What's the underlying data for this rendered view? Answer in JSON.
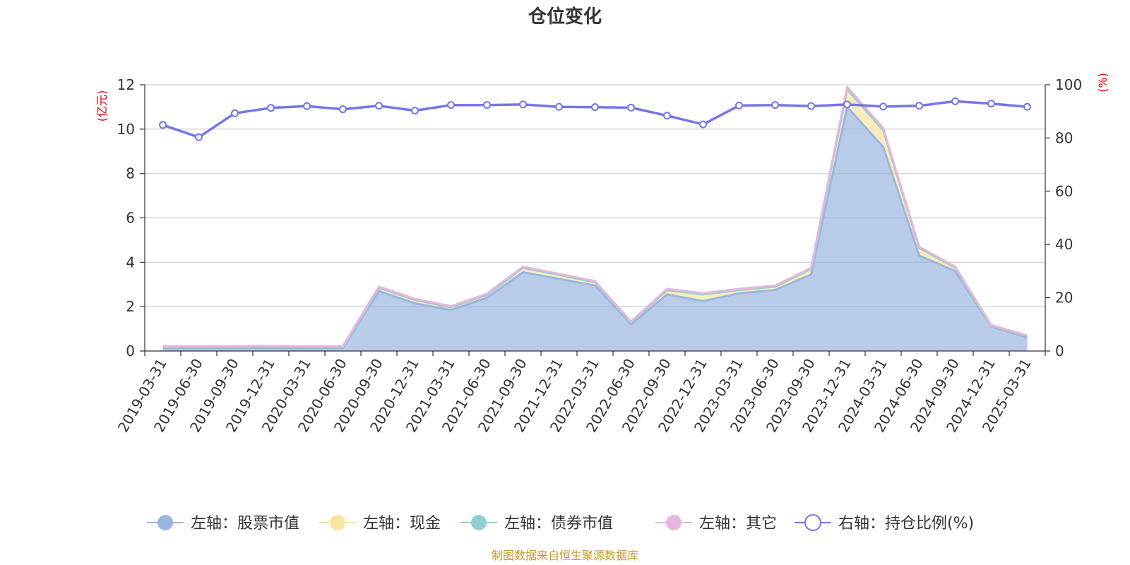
{
  "chart_data": {
    "type": "area",
    "title": "仓位变化",
    "x": [
      "2019-03-31",
      "2019-06-30",
      "2019-09-30",
      "2019-12-31",
      "2020-03-31",
      "2020-06-30",
      "2020-09-30",
      "2020-12-31",
      "2021-03-31",
      "2021-06-30",
      "2021-09-30",
      "2021-12-31",
      "2022-03-31",
      "2022-06-30",
      "2022-09-30",
      "2022-12-31",
      "2023-03-31",
      "2023-06-30",
      "2023-09-30",
      "2023-12-31",
      "2024-03-31",
      "2024-06-30",
      "2024-09-30",
      "2024-12-31",
      "2025-03-31"
    ],
    "y_left": {
      "unit_label": "(亿元)",
      "ylim": [
        0,
        12
      ],
      "ticks": [
        "0",
        "2",
        "4",
        "6",
        "8",
        "10",
        "12"
      ]
    },
    "y_right": {
      "unit_label": "(%)",
      "ylim": [
        0,
        100
      ],
      "ticks": [
        "0",
        "20",
        "40",
        "60",
        "80",
        "100"
      ]
    },
    "grid": true,
    "legend_position": "bottom",
    "series": [
      {
        "name": "左轴：股票市值",
        "axis": "left",
        "stacked": true,
        "color": "#9ab6e0",
        "values": [
          0.13,
          0.13,
          0.13,
          0.13,
          0.12,
          0.13,
          2.7,
          2.15,
          1.85,
          2.4,
          3.55,
          3.25,
          2.95,
          1.2,
          2.55,
          2.25,
          2.6,
          2.75,
          3.45,
          11.0,
          9.2,
          4.3,
          3.6,
          1.1,
          0.6
        ]
      },
      {
        "name": "左轴：现金",
        "axis": "left",
        "stacked": true,
        "color": "#f7e5a0",
        "values": [
          0.07,
          0.07,
          0.07,
          0.08,
          0.07,
          0.07,
          0.15,
          0.15,
          0.12,
          0.13,
          0.2,
          0.18,
          0.15,
          0.08,
          0.2,
          0.3,
          0.15,
          0.15,
          0.25,
          0.8,
          0.75,
          0.35,
          0.15,
          0.05,
          0.08
        ]
      },
      {
        "name": "左轴：债券市值",
        "axis": "left",
        "stacked": true,
        "color": "#8fd1cf",
        "values": [
          0,
          0,
          0,
          0,
          0,
          0,
          0,
          0,
          0,
          0,
          0,
          0,
          0,
          0,
          0,
          0,
          0,
          0,
          0,
          0,
          0,
          0,
          0,
          0,
          0
        ]
      },
      {
        "name": "左轴：其它",
        "axis": "left",
        "stacked": true,
        "color": "#e8b5dc",
        "values": [
          0.02,
          0.02,
          0.02,
          0.02,
          0.02,
          0.02,
          0.05,
          0.05,
          0.05,
          0.05,
          0.05,
          0.05,
          0.05,
          0.05,
          0.05,
          0.05,
          0.05,
          0.05,
          0.05,
          0.1,
          0.1,
          0.05,
          0.05,
          0.02,
          0.02
        ]
      },
      {
        "name": "右轴：持仓比例(%)",
        "axis": "right",
        "stacked": false,
        "color": "#7475ea",
        "values": [
          84.9,
          80.3,
          89.3,
          91.3,
          92.0,
          90.8,
          92.1,
          90.3,
          92.4,
          92.4,
          92.6,
          91.7,
          91.6,
          91.4,
          88.4,
          85.1,
          92.2,
          92.4,
          92.0,
          92.6,
          91.8,
          92.1,
          93.8,
          92.9,
          91.7
        ]
      }
    ],
    "source": "制图数据来自恒生聚源数据库"
  }
}
